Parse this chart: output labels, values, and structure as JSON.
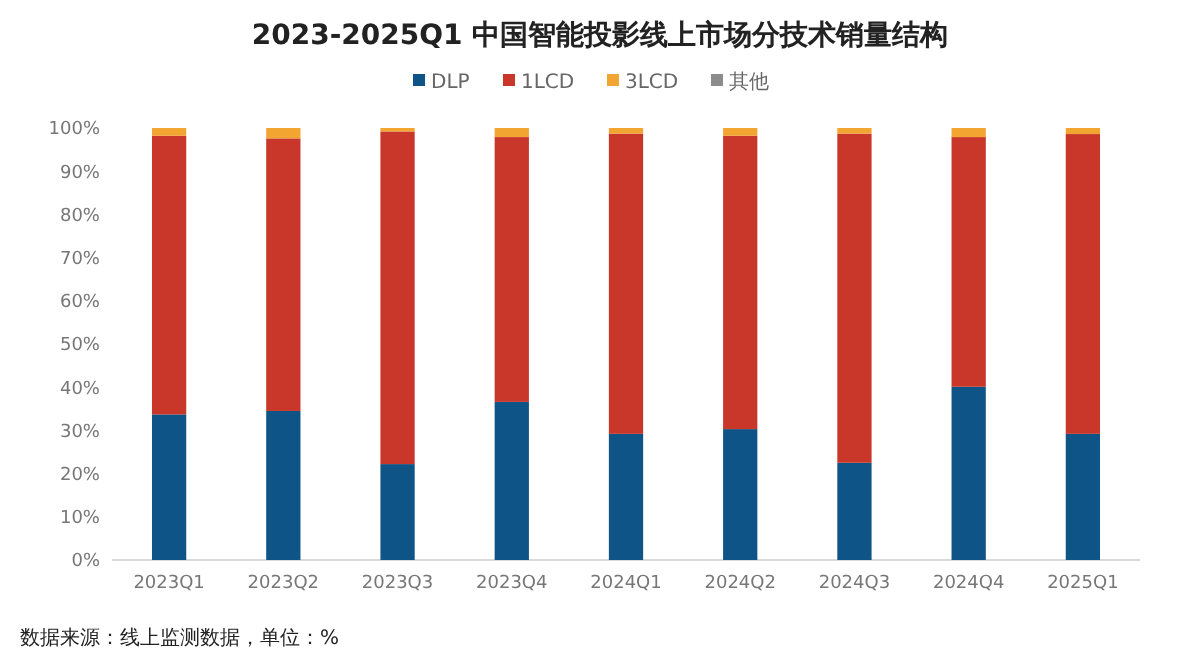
{
  "chart_data": {
    "type": "bar",
    "stacked": true,
    "title": "2023-2025Q1 中国智能投影线上市场分技术销量结构",
    "categories": [
      "2023Q1",
      "2023Q2",
      "2023Q3",
      "2023Q4",
      "2024Q1",
      "2024Q2",
      "2024Q3",
      "2024Q4",
      "2025Q1"
    ],
    "series": [
      {
        "name": "DLP",
        "color": "#0f5486",
        "values": [
          33.7,
          34.5,
          22.2,
          36.6,
          29.2,
          30.3,
          22.5,
          40.1,
          29.2
        ]
      },
      {
        "name": "1LCD",
        "color": "#c8372a",
        "values": [
          64.5,
          63.1,
          77.0,
          61.3,
          69.5,
          67.9,
          76.2,
          57.8,
          69.4
        ]
      },
      {
        "name": "3LCD",
        "color": "#f3a531",
        "values": [
          1.8,
          2.4,
          0.8,
          2.1,
          1.3,
          1.8,
          1.3,
          2.1,
          1.4
        ]
      },
      {
        "name": "其他",
        "color": "#8c8c8c",
        "values": [
          0,
          0,
          0,
          0,
          0,
          0,
          0,
          0,
          0
        ]
      }
    ],
    "ylim": [
      0,
      100
    ],
    "yticks": [
      {
        "value": 0,
        "label": "0%"
      },
      {
        "value": 10,
        "label": "10%"
      },
      {
        "value": 20,
        "label": "20%"
      },
      {
        "value": 30,
        "label": "30%"
      },
      {
        "value": 40,
        "label": "40%"
      },
      {
        "value": 50,
        "label": "50%"
      },
      {
        "value": 60,
        "label": "60%"
      },
      {
        "value": 70,
        "label": "70%"
      },
      {
        "value": 80,
        "label": "80%"
      },
      {
        "value": 90,
        "label": "90%"
      },
      {
        "value": 100,
        "label": "100%"
      }
    ],
    "legend": "top",
    "annotations": [
      "数据来源：线上监测数据，单位：%"
    ]
  }
}
